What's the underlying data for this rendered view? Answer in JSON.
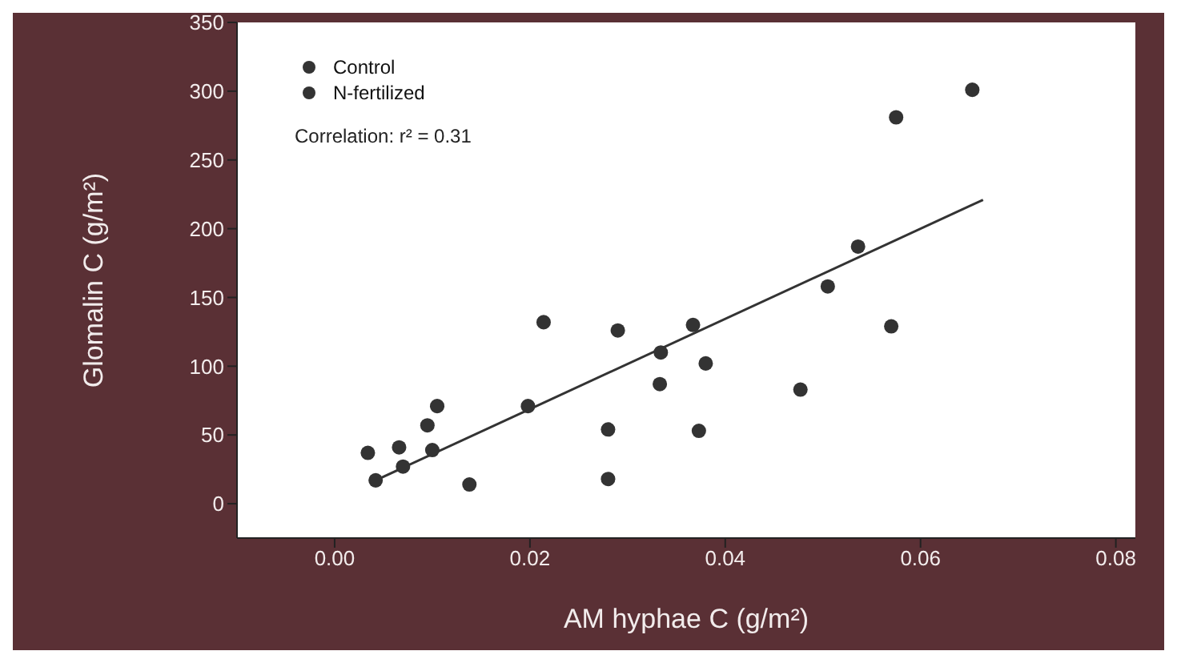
{
  "chart_data": {
    "type": "scatter",
    "xlabel": "AM hyphae C (g/m²)",
    "ylabel": "Glomalin C (g/m²)",
    "xlim": [
      -0.01,
      0.082
    ],
    "xticks": [
      {
        "value": 0,
        "label": "0.00"
      },
      {
        "value": 0.02,
        "label": "0.02"
      },
      {
        "value": 0.04,
        "label": "0.04"
      },
      {
        "value": 0.06,
        "label": "0.06"
      },
      {
        "value": 0.08,
        "label": "0.08"
      }
    ],
    "ylim": [
      -25,
      350
    ],
    "yticks": [
      0,
      50,
      100,
      150,
      200,
      250,
      300,
      350
    ],
    "legend": "top left",
    "annotations": [
      "Correlation: r² = 0.31"
    ],
    "series": [
      {
        "name": "Control",
        "color": "#333333",
        "marker": "circle",
        "x": [
          0.0034,
          0.007,
          0.01,
          0.0138,
          0.0214,
          0.028,
          0.0334,
          0.0367,
          0.0373,
          0.0505,
          0.057,
          0.0653
        ],
        "values": [
          37,
          27,
          39,
          14,
          132,
          54,
          110,
          130,
          53,
          158,
          129,
          301
        ]
      },
      {
        "name": "N-fertilized",
        "color": "#333333",
        "marker": "circle",
        "x": [
          0.0066,
          0.0042,
          0.0095,
          0.0105,
          0.0198,
          0.029,
          0.028,
          0.0333,
          0.038,
          0.0477,
          0.0536,
          0.0575
        ],
        "values": [
          41,
          17,
          57,
          71,
          71,
          126,
          18,
          87,
          102,
          83,
          187,
          281
        ]
      },
      {
        "type": "line",
        "color": "#333333",
        "x": [
          0.0042,
          0.0664
        ],
        "values": [
          17,
          221
        ]
      }
    ]
  }
}
